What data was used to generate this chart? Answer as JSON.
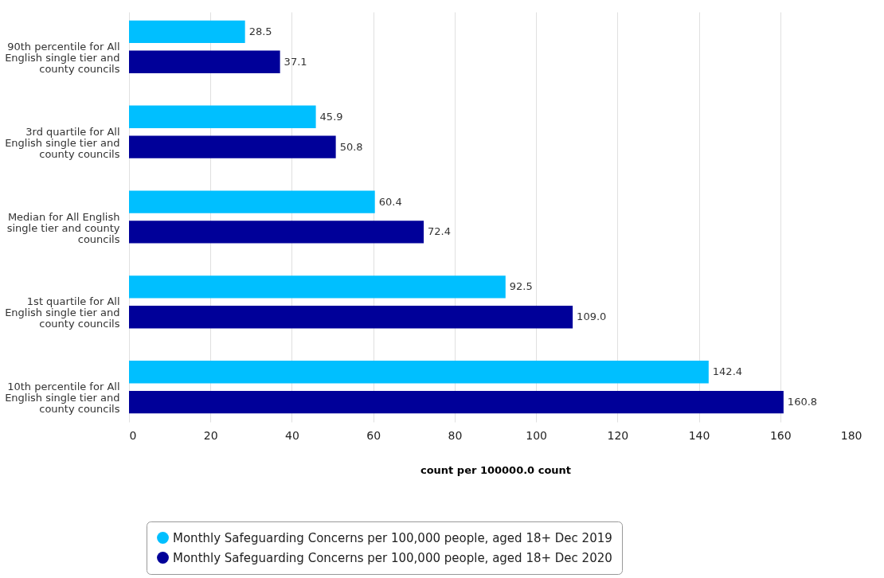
{
  "chart_data": {
    "type": "bar",
    "orientation": "horizontal",
    "xlabel": "count per 100000.0 count",
    "categories": [
      "90th percentile for All English single tier and county councils",
      "3rd quartile for All English single tier and county councils",
      "Median for All English single tier and county councils",
      "1st quartile for All English single tier and county councils",
      "10th percentile for All English single tier and county councils"
    ],
    "series": [
      {
        "name": "Monthly Safeguarding Concerns per 100,000 people, aged 18+ Dec 2019",
        "color": "#00bfff",
        "values": [
          28.5,
          45.9,
          60.4,
          92.5,
          142.4
        ],
        "value_labels": [
          "28.5",
          "45.9",
          "60.4",
          "92.5",
          "142.4"
        ]
      },
      {
        "name": "Monthly Safeguarding Concerns per 100,000 people, aged 18+ Dec 2020",
        "color": "#000099",
        "values": [
          37.1,
          50.8,
          72.4,
          109.0,
          160.8
        ],
        "value_labels": [
          "37.1",
          "50.8",
          "72.4",
          "109.0",
          "160.8"
        ]
      }
    ],
    "xlim": [
      0,
      180
    ],
    "xticks": [
      0,
      20,
      40,
      60,
      80,
      100,
      120,
      140,
      160,
      180
    ],
    "grid": "x",
    "legend": "bottom"
  }
}
